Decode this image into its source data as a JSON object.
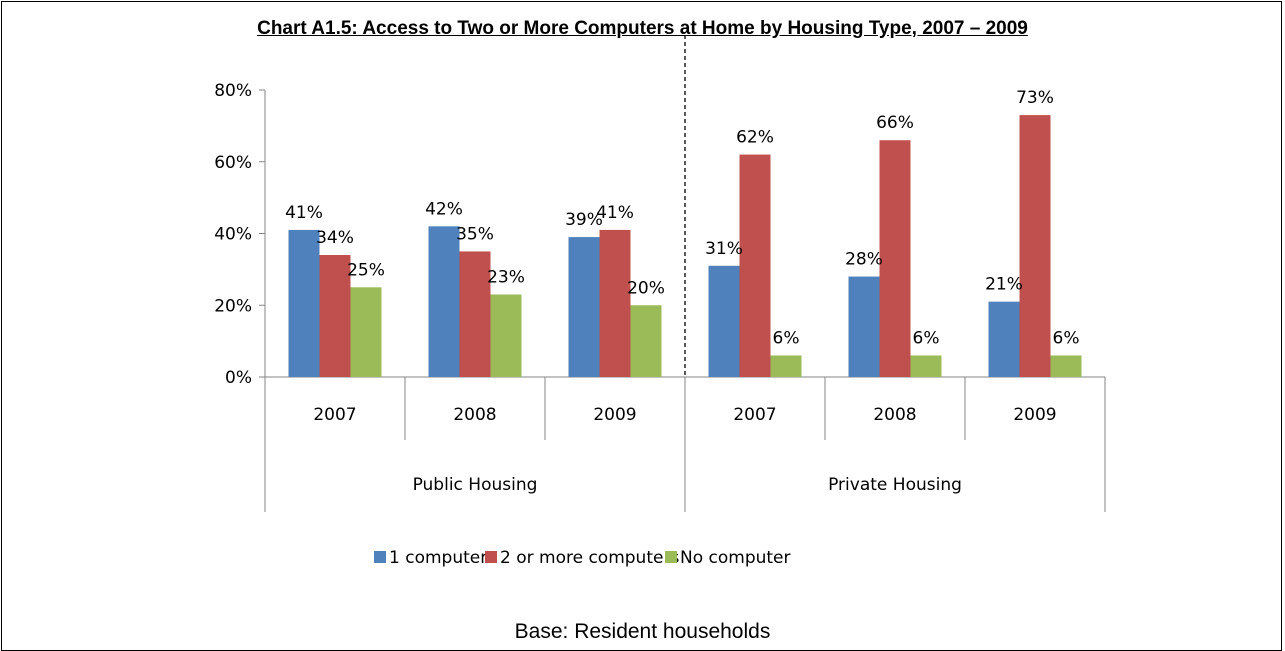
{
  "chart_data": {
    "type": "bar",
    "title": "Chart A1.5: Access to Two or More Computers at Home by Housing Type, 2007 – 2009",
    "groups": [
      {
        "name": "Public Housing",
        "categories": [
          "2007",
          "2008",
          "2009"
        ]
      },
      {
        "name": "Private Housing",
        "categories": [
          "2007",
          "2008",
          "2009"
        ]
      }
    ],
    "series": [
      {
        "name": "1 computer",
        "color": "#4F81BD",
        "values": [
          41,
          42,
          39,
          31,
          28,
          21
        ],
        "labels": [
          "41%",
          "42%",
          "39%",
          "31%",
          "28%",
          "21%"
        ]
      },
      {
        "name": "2 or more computers",
        "color": "#C0504D",
        "values": [
          34,
          35,
          41,
          62,
          66,
          73
        ],
        "labels": [
          "34%",
          "35%",
          "41%",
          "62%",
          "66%",
          "73%"
        ]
      },
      {
        "name": "No computer",
        "color": "#9BBB59",
        "values": [
          25,
          23,
          20,
          6,
          6,
          6
        ],
        "labels": [
          "25%",
          "23%",
          "20%",
          "6%",
          "6%",
          "6%"
        ]
      }
    ],
    "y_ticks": [
      "0%",
      "20%",
      "40%",
      "60%",
      "80%"
    ],
    "ylim": [
      0,
      80
    ],
    "grid": false,
    "legend_position": "bottom",
    "footnote": "Base: Resident households"
  }
}
